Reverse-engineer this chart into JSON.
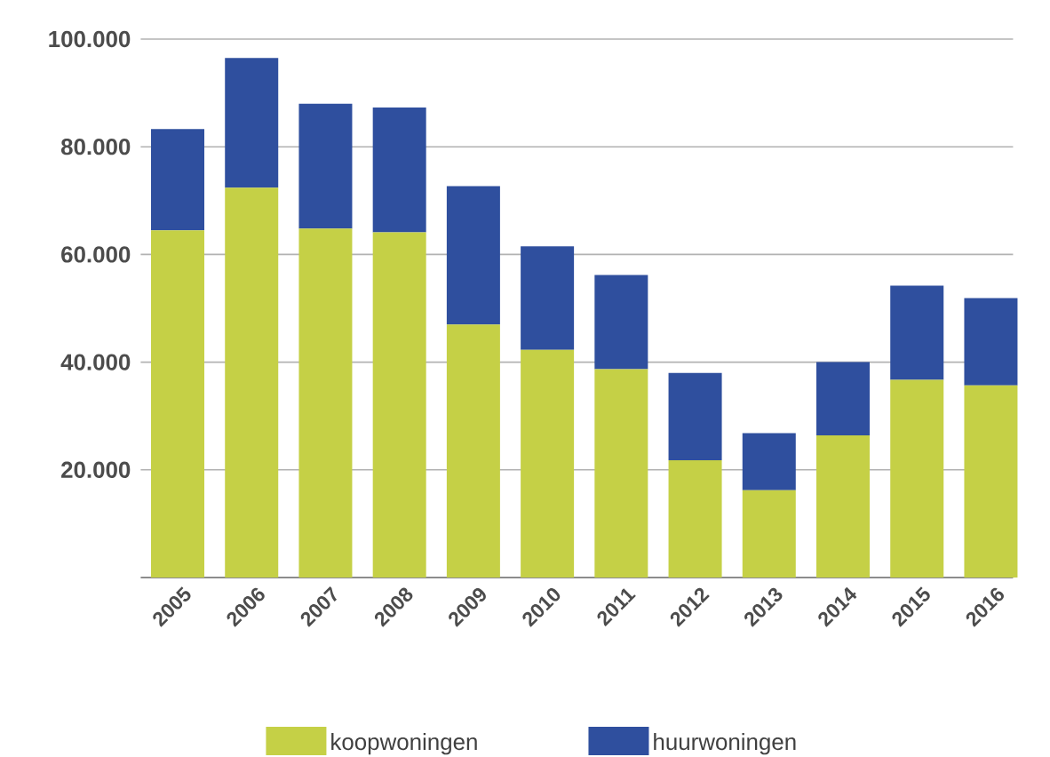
{
  "chart_data": {
    "type": "bar",
    "stacked": true,
    "categories": [
      "2005",
      "2006",
      "2007",
      "2008",
      "2009",
      "2010",
      "2011",
      "2012",
      "2013",
      "2014",
      "2015",
      "2016"
    ],
    "series": [
      {
        "name": "koopwoningen",
        "color": "#c5d046",
        "values": [
          64500,
          72400,
          64800,
          64100,
          47000,
          42300,
          38700,
          21800,
          16200,
          26400,
          36700,
          35700
        ]
      },
      {
        "name": "huurwoningen",
        "color": "#2f4f9e",
        "values": [
          18800,
          24100,
          23200,
          23200,
          25700,
          19200,
          17500,
          16200,
          10600,
          13600,
          17500,
          16200
        ]
      }
    ],
    "ylim": [
      0,
      100000
    ],
    "yticks": [
      {
        "value": 20000,
        "label": "20.000"
      },
      {
        "value": 40000,
        "label": "40.000"
      },
      {
        "value": 60000,
        "label": "60.000"
      },
      {
        "value": 80000,
        "label": "80.000"
      },
      {
        "value": 100000,
        "label": "100.000"
      }
    ],
    "grid": "y",
    "legend": "bottom"
  }
}
